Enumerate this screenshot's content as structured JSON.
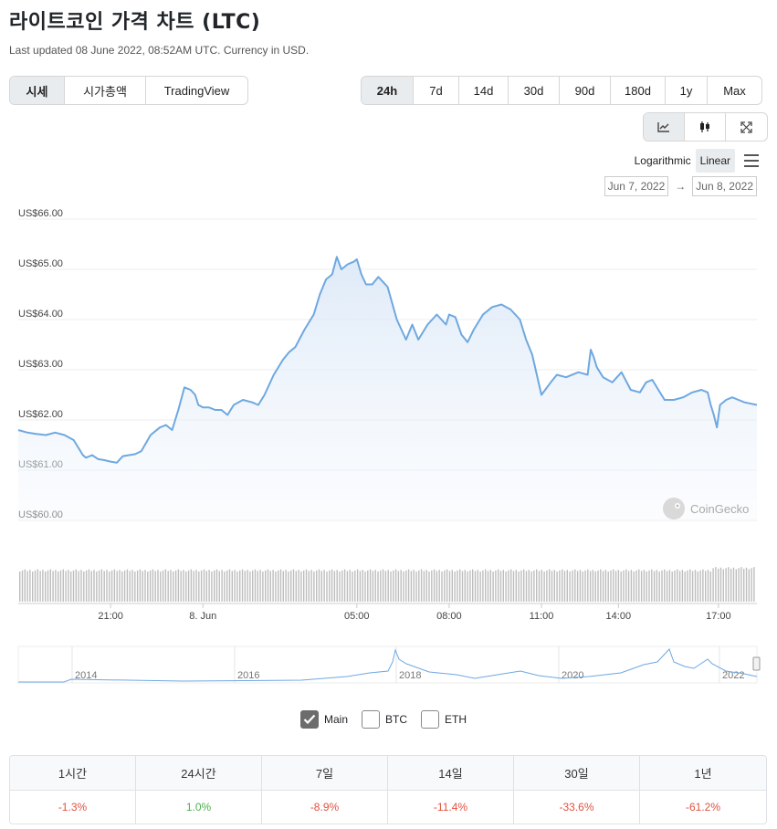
{
  "title": "라이트코인 가격 차트 (LTC)",
  "updated": "Last updated 08 June 2022, 08:52AM UTC. Currency in USD.",
  "view_tabs": [
    {
      "label": "시세",
      "active": true
    },
    {
      "label": "시가총액",
      "active": false
    },
    {
      "label": "TradingView",
      "active": false
    }
  ],
  "range_tabs": [
    {
      "label": "24h",
      "active": true
    },
    {
      "label": "7d",
      "active": false
    },
    {
      "label": "14d",
      "active": false
    },
    {
      "label": "30d",
      "active": false
    },
    {
      "label": "90d",
      "active": false
    },
    {
      "label": "180d",
      "active": false
    },
    {
      "label": "1y",
      "active": false
    },
    {
      "label": "Max",
      "active": false
    }
  ],
  "chart_type_icons": [
    "line-chart-icon",
    "candlestick-icon",
    "fullscreen-icon"
  ],
  "scale": {
    "log_label": "Logarithmic",
    "linear_label": "Linear",
    "active": "Linear"
  },
  "date_range": {
    "from": "Jun 7, 2022",
    "to": "Jun 8, 2022",
    "arrow": "→"
  },
  "watermark": "CoinGecko",
  "colors": {
    "line": "#6ea8e0",
    "positive": "#4caf50",
    "negative": "#e15241",
    "volume": "#bdbdbd"
  },
  "chart_data": {
    "type": "area",
    "y_ticks": [
      "US$66.00",
      "US$65.00",
      "US$64.00",
      "US$63.00",
      "US$62.00",
      "US$61.00",
      "US$60.00"
    ],
    "ylim": [
      60,
      66
    ],
    "x_ticks": [
      {
        "label": "21:00",
        "t": 3
      },
      {
        "label": "8. Jun",
        "t": 6
      },
      {
        "label": "05:00",
        "t": 11
      },
      {
        "label": "08:00",
        "t": 14
      },
      {
        "label": "11:00",
        "t": 17
      },
      {
        "label": "14:00",
        "t": 19.5
      },
      {
        "label": "17:00",
        "t": 22.75
      }
    ],
    "xlim": [
      0,
      24
    ],
    "series": [
      {
        "x": [
          0,
          0.3,
          0.6,
          0.9,
          1.2,
          1.5,
          1.8,
          2.1,
          2.2,
          2.4,
          2.6,
          2.8,
          3.0,
          3.2,
          3.4,
          3.6,
          3.8,
          4.0,
          4.3,
          4.6,
          4.8,
          5.0,
          5.2,
          5.4,
          5.6,
          5.75,
          5.85,
          6.0,
          6.2,
          6.4,
          6.6,
          6.8,
          7.0,
          7.3,
          7.6,
          7.8,
          8.0,
          8.3,
          8.6,
          8.8,
          9.0,
          9.3,
          9.6,
          9.8,
          10.0,
          10.2,
          10.35,
          10.5,
          10.7,
          10.9,
          11.0,
          11.15,
          11.3,
          11.5,
          11.7,
          12.0,
          12.3,
          12.6,
          12.8,
          13.0,
          13.3,
          13.6,
          13.9,
          14.0,
          14.2,
          14.4,
          14.6,
          14.8,
          15.1,
          15.4,
          15.7,
          16.0,
          16.3,
          16.5,
          16.7,
          17.0,
          17.3,
          17.5,
          17.8,
          18.2,
          18.5,
          18.6,
          18.7,
          18.8,
          19.0,
          19.3,
          19.6,
          19.9,
          20.2,
          20.4,
          20.6,
          20.8,
          21.0,
          21.3,
          21.6,
          21.9,
          22.2,
          22.4,
          22.5,
          22.6,
          22.7,
          22.8,
          23.0,
          23.2,
          23.4,
          23.6,
          24.0
        ],
        "y": [
          61.8,
          61.75,
          61.72,
          61.7,
          61.75,
          61.7,
          61.6,
          61.3,
          61.25,
          61.3,
          61.22,
          61.2,
          61.17,
          61.15,
          61.28,
          61.3,
          61.32,
          61.38,
          61.7,
          61.85,
          61.9,
          61.8,
          62.2,
          62.65,
          62.6,
          62.5,
          62.3,
          62.25,
          62.25,
          62.2,
          62.2,
          62.1,
          62.3,
          62.4,
          62.35,
          62.3,
          62.5,
          62.9,
          63.2,
          63.35,
          63.45,
          63.8,
          64.1,
          64.5,
          64.8,
          64.9,
          65.25,
          65.0,
          65.1,
          65.15,
          65.2,
          64.9,
          64.7,
          64.7,
          64.85,
          64.65,
          64.0,
          63.6,
          63.9,
          63.6,
          63.9,
          64.1,
          63.9,
          64.1,
          64.05,
          63.7,
          63.55,
          63.8,
          64.1,
          64.25,
          64.3,
          64.2,
          64.0,
          63.6,
          63.3,
          62.5,
          62.75,
          62.9,
          62.85,
          62.95,
          62.9,
          63.4,
          63.25,
          63.05,
          62.85,
          62.75,
          62.95,
          62.6,
          62.55,
          62.75,
          62.8,
          62.6,
          62.4,
          62.4,
          62.45,
          62.55,
          62.6,
          62.55,
          62.3,
          62.1,
          61.85,
          62.3,
          62.4,
          62.45,
          62.4,
          62.35,
          62.3
        ]
      }
    ]
  },
  "mini_chart": {
    "x_ticks": [
      "2014",
      "2016",
      "2018",
      "2020",
      "2022"
    ]
  },
  "series_toggles": [
    {
      "label": "Main",
      "checked": true
    },
    {
      "label": "BTC",
      "checked": false
    },
    {
      "label": "ETH",
      "checked": false
    }
  ],
  "performance": {
    "headers": [
      "1시간",
      "24시간",
      "7일",
      "14일",
      "30일",
      "1년"
    ],
    "values": [
      "-1.3%",
      "1.0%",
      "-8.9%",
      "-11.4%",
      "-33.6%",
      "-61.2%"
    ]
  }
}
